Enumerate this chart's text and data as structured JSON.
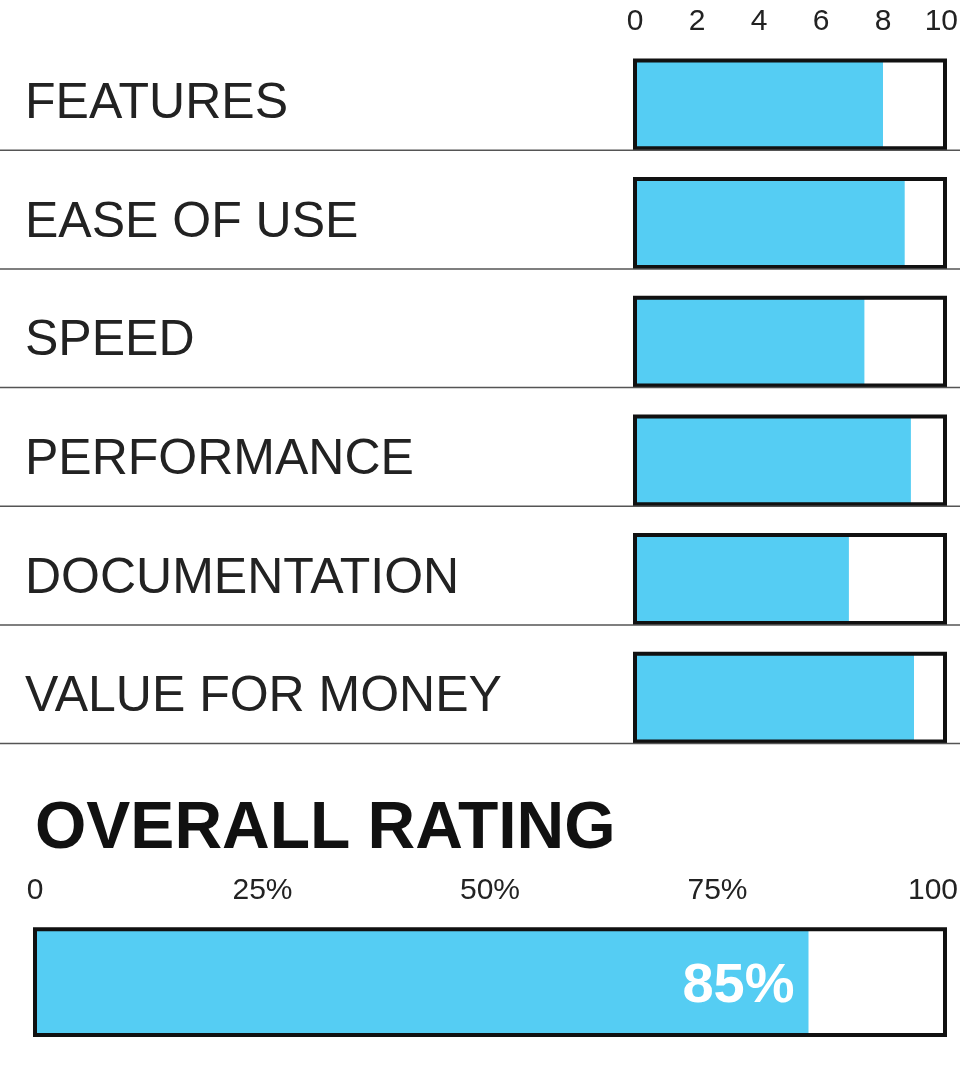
{
  "chart_data": [
    {
      "type": "bar",
      "orientation": "horizontal",
      "categories": [
        "FEATURES",
        "EASE OF USE",
        "SPEED",
        "PERFORMANCE",
        "DOCUMENTATION",
        "VALUE FOR MONEY"
      ],
      "values": [
        8.0,
        8.7,
        7.4,
        8.9,
        6.9,
        9.0
      ],
      "color": "#55cdf3",
      "xlim": [
        0,
        10
      ],
      "xticks": [
        0,
        2,
        4,
        6,
        8,
        10
      ]
    },
    {
      "type": "bar",
      "orientation": "horizontal",
      "title": "OVERALL RATING",
      "categories": [
        null
      ],
      "values": [
        85
      ],
      "value_labels": [
        "85%"
      ],
      "color": "#55cdf3",
      "xlim": [
        0,
        100
      ],
      "xticks": [
        {
          "value": 0,
          "label": "0"
        },
        {
          "value": 25,
          "label": "25%"
        },
        {
          "value": 50,
          "label": "50%"
        },
        {
          "value": 75,
          "label": "75%"
        },
        {
          "value": 100,
          "label": "100"
        }
      ]
    }
  ]
}
